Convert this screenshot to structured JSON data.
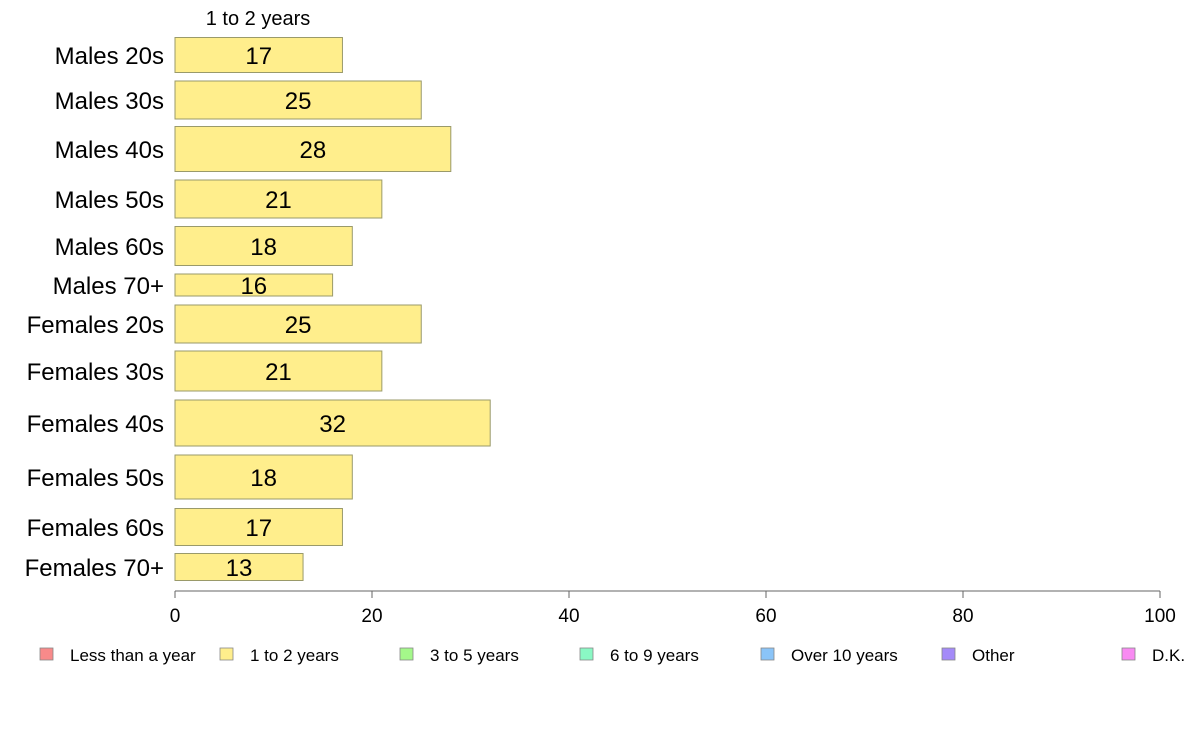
{
  "chart_data": {
    "type": "bar",
    "orientation": "horizontal",
    "stacked": true,
    "categories": [
      "Males 20s",
      "Males 30s",
      "Males 40s",
      "Males 50s",
      "Males 60s",
      "Males 70+",
      "Females 20s",
      "Females 30s",
      "Females 40s",
      "Females 50s",
      "Females 60s",
      "Females 70+"
    ],
    "series": [
      {
        "name": "1 to 2 years",
        "color": "#ffee8c",
        "values": [
          17,
          25,
          28,
          21,
          18,
          16,
          25,
          21,
          32,
          18,
          17,
          13
        ]
      }
    ],
    "series_title": "1 to 2 years",
    "xlim": [
      0,
      100
    ],
    "xticks": [
      0,
      20,
      40,
      60,
      80,
      100
    ],
    "grid": false,
    "legend_position": "bottom",
    "legend": [
      {
        "label": "Less than a year",
        "color": "#f88a8a"
      },
      {
        "label": "1 to 2 years",
        "color": "#ffee8c"
      },
      {
        "label": "3 to 5 years",
        "color": "#a4f88a"
      },
      {
        "label": "6 to 9 years",
        "color": "#8af8c4"
      },
      {
        "label": "Over 10 years",
        "color": "#8ac4f8"
      },
      {
        "label": "Other",
        "color": "#a48af8"
      },
      {
        "label": "D.K.",
        "color": "#f88af2"
      }
    ]
  }
}
